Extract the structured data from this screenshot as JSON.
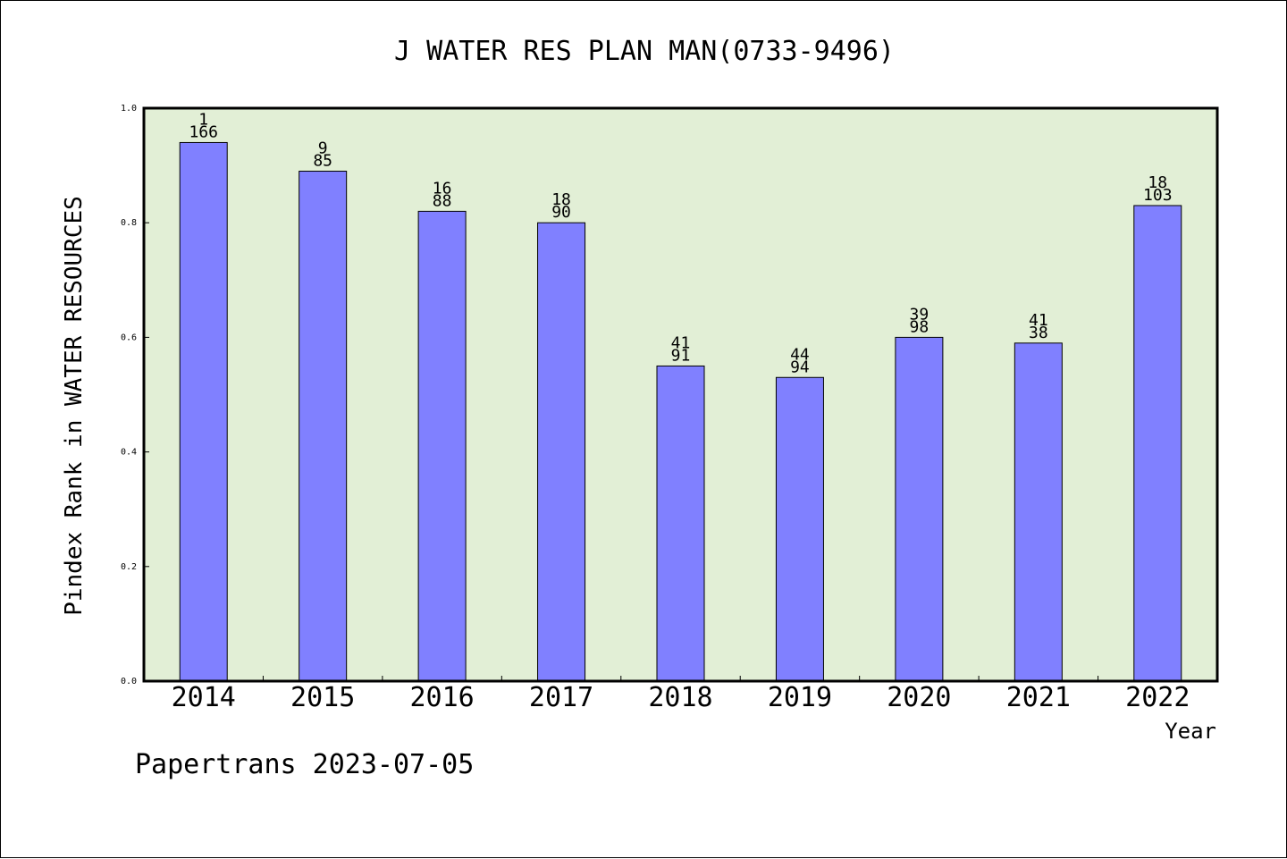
{
  "chart_data": {
    "type": "bar",
    "title": "J WATER RES PLAN MAN(0733-9496)",
    "xlabel": "Year",
    "ylabel": "Pindex Rank in WATER RESOURCES",
    "ylim": [
      0,
      1.0
    ],
    "yticks": [
      "0.0",
      "0.2",
      "0.4",
      "0.6",
      "0.8",
      "1.0"
    ],
    "categories": [
      "2014",
      "2015",
      "2016",
      "2017",
      "2018",
      "2019",
      "2020",
      "2021",
      "2022"
    ],
    "values": [
      0.94,
      0.89,
      0.82,
      0.8,
      0.55,
      0.53,
      0.6,
      0.59,
      0.83
    ],
    "labels_top": [
      "1",
      "9",
      "16",
      "18",
      "41",
      "44",
      "39",
      "41",
      "18"
    ],
    "labels_bottom": [
      "166",
      "85",
      "88",
      "90",
      "91",
      "94",
      "98",
      "38",
      "103"
    ],
    "grid": false,
    "colors": {
      "bar": "#8080ff",
      "plot_bg": "#e2efd6"
    }
  },
  "footer": "Papertrans 2023-07-05"
}
